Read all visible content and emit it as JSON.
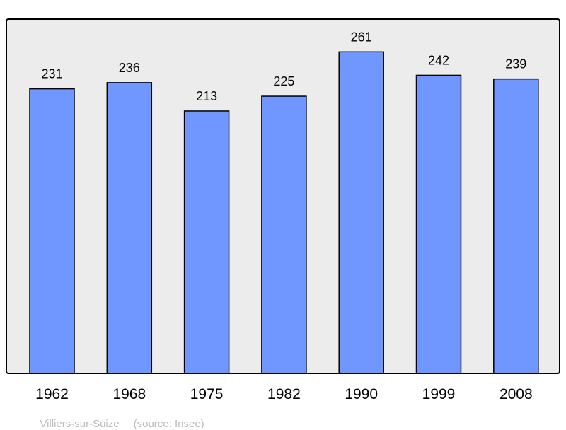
{
  "chart_data": {
    "type": "bar",
    "categories": [
      "1962",
      "1968",
      "1975",
      "1982",
      "1990",
      "1999",
      "2008"
    ],
    "values": [
      231,
      236,
      213,
      225,
      261,
      242,
      239
    ],
    "title": "",
    "xlabel": "",
    "ylabel": "",
    "ylim": [
      0,
      288
    ],
    "grid": false,
    "data_labels": true,
    "colors": {
      "bar": "#6f97ff",
      "background": "#ececec",
      "border": "#000000"
    }
  },
  "footer": {
    "place": "Villiers-sur-Suize",
    "source": "(source: Insee)"
  }
}
